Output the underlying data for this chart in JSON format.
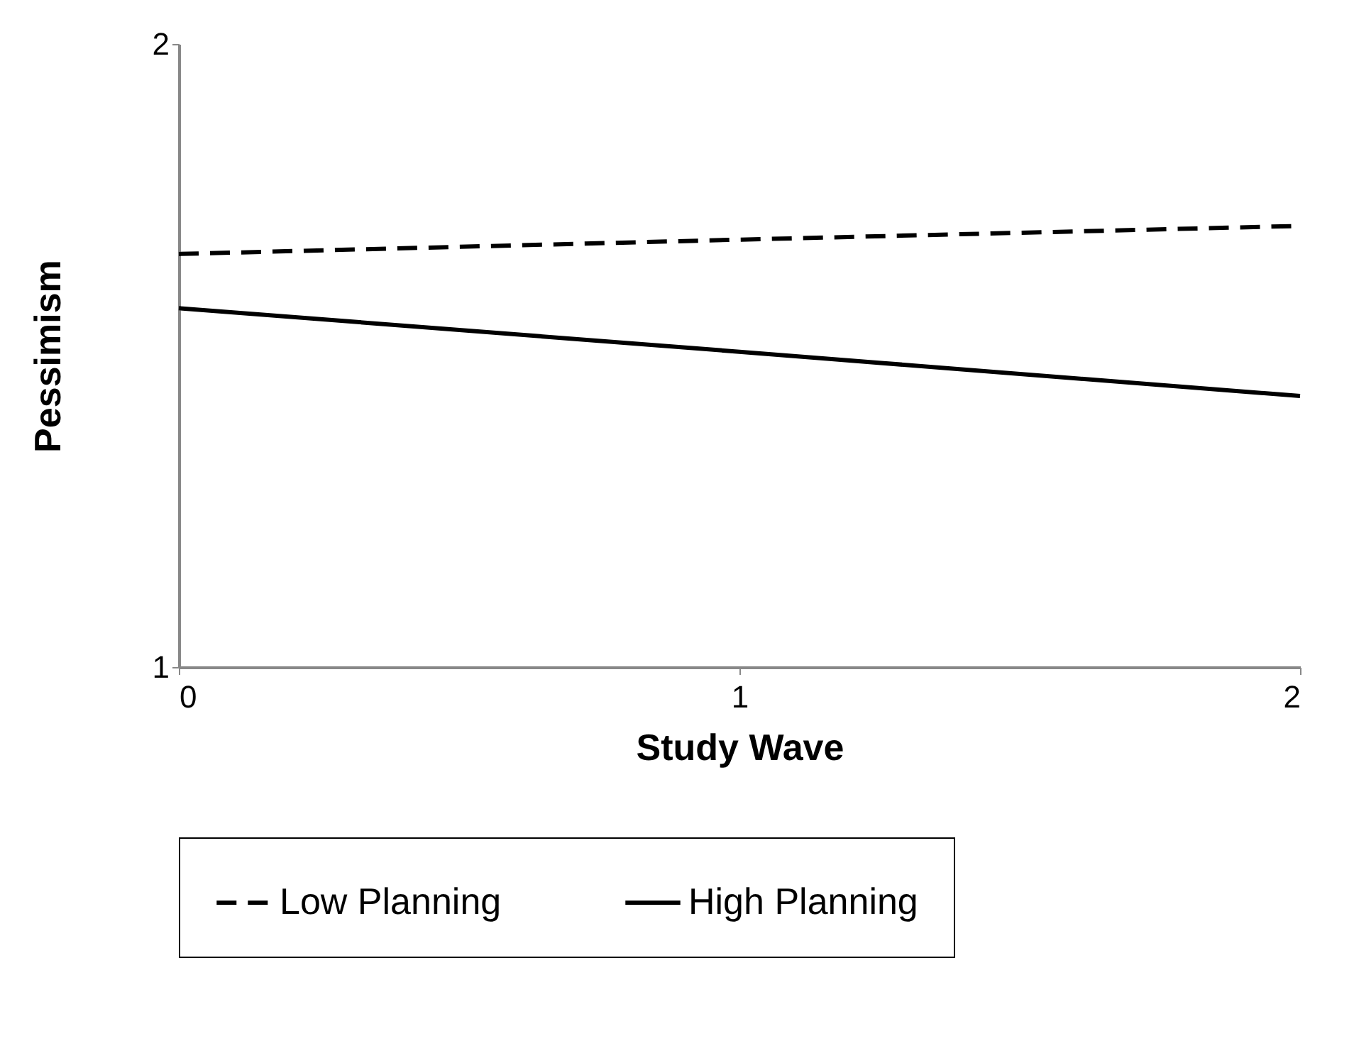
{
  "chart_data": {
    "type": "line",
    "xlabel": "Study Wave",
    "ylabel": "Pessimism",
    "x": [
      0,
      1,
      2
    ],
    "xlim": [
      0,
      2
    ],
    "xticks": [
      0,
      1,
      2
    ],
    "ylim": [
      1,
      2
    ],
    "yticks": [
      1,
      2
    ],
    "grid": false,
    "legend": "bottom",
    "marker": "none",
    "series": [
      {
        "name": "Low Planning",
        "color": "#000000",
        "line_style": "dashed",
        "values": [
          1.663,
          1.686,
          1.708
        ]
      },
      {
        "name": "High Planning",
        "color": "#000000",
        "line_style": "solid",
        "values": [
          1.576,
          1.506,
          1.435
        ]
      }
    ]
  }
}
